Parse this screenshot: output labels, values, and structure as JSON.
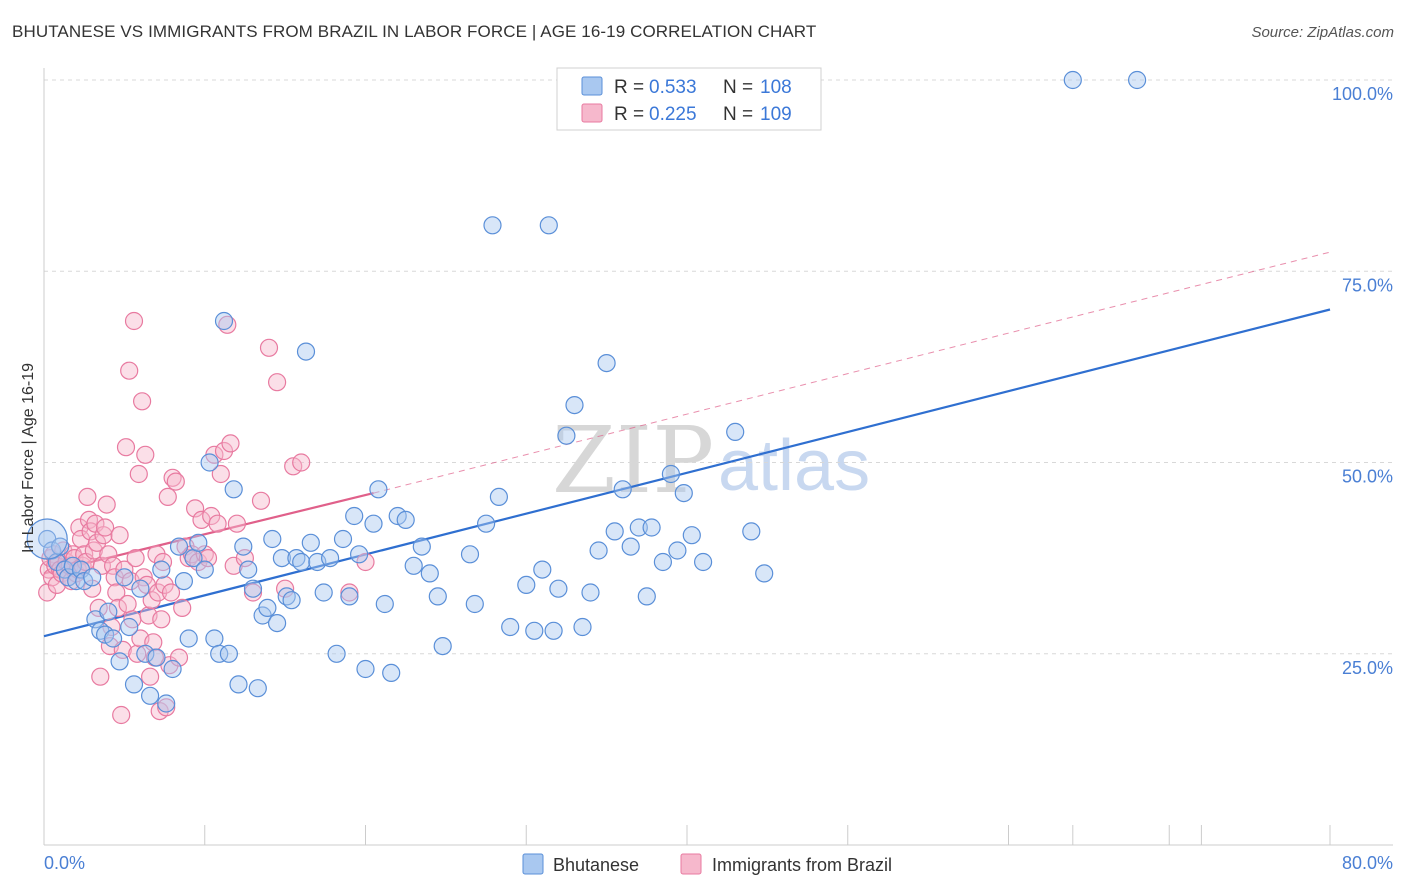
{
  "header": {
    "title": "BHUTANESE VS IMMIGRANTS FROM BRAZIL IN LABOR FORCE | AGE 16-19 CORRELATION CHART",
    "source": "Source: ZipAtlas.com"
  },
  "watermark": {
    "zip": "ZIP",
    "atlas": "atlas"
  },
  "colors": {
    "blue_fill": "#a9c8f0",
    "blue_stroke": "#5a8fd8",
    "blue_line": "#2f6fd0",
    "pink_fill": "#f6b8cc",
    "pink_stroke": "#e87aa0",
    "pink_line": "#e0608a",
    "axis_text": "#4a7fd4",
    "grid": "#d8d8d8"
  },
  "legend": {
    "rows": [
      {
        "r_label": "R = ",
        "r_value": "0.533",
        "n_label": "N = ",
        "n_value": "108"
      },
      {
        "r_label": "R = ",
        "r_value": "0.225",
        "n_label": "N = ",
        "n_value": "109"
      }
    ]
  },
  "bottom_legend": [
    "Bhutanese",
    "Immigrants from Brazil"
  ],
  "chart_data": {
    "type": "scatter",
    "title": "BHUTANESE VS IMMIGRANTS FROM BRAZIL IN LABOR FORCE | AGE 16-19 CORRELATION CHART",
    "xlabel": "",
    "ylabel": "In Labor Force | Age 16-19",
    "xlim": [
      0,
      80
    ],
    "ylim": [
      0,
      105
    ],
    "x_tick_labels": [
      "0.0%",
      "80.0%"
    ],
    "y_ticks": [
      25,
      50,
      75,
      100
    ],
    "y_tick_labels": [
      "25.0%",
      "50.0%",
      "75.0%",
      "100.0%"
    ],
    "grid": true,
    "series": [
      {
        "name": "Bhutanese",
        "r": 0.533,
        "n": 108,
        "trend": {
          "x": [
            0,
            80
          ],
          "y": [
            27.3,
            70.0
          ],
          "style": "solid"
        },
        "points": [
          [
            0.2,
            40.0
          ],
          [
            0.5,
            38.5
          ],
          [
            0.8,
            37.0
          ],
          [
            1.0,
            39.0
          ],
          [
            1.3,
            36.0
          ],
          [
            1.5,
            35.0
          ],
          [
            1.8,
            36.5
          ],
          [
            2.0,
            34.5
          ],
          [
            2.3,
            36.0
          ],
          [
            2.5,
            34.5
          ],
          [
            3.0,
            35.0
          ],
          [
            3.2,
            29.5
          ],
          [
            3.5,
            28.0
          ],
          [
            3.8,
            27.5
          ],
          [
            4.0,
            30.5
          ],
          [
            4.3,
            27.0
          ],
          [
            4.7,
            24.0
          ],
          [
            5.0,
            35.0
          ],
          [
            5.3,
            28.5
          ],
          [
            5.6,
            21.0
          ],
          [
            6.0,
            33.5
          ],
          [
            6.3,
            25.0
          ],
          [
            6.6,
            19.5
          ],
          [
            7.0,
            24.5
          ],
          [
            7.3,
            36.0
          ],
          [
            7.6,
            18.5
          ],
          [
            8.0,
            23.0
          ],
          [
            8.4,
            39.0
          ],
          [
            8.7,
            34.5
          ],
          [
            9.0,
            27.0
          ],
          [
            9.3,
            37.5
          ],
          [
            9.6,
            39.5
          ],
          [
            10.0,
            36.0
          ],
          [
            10.3,
            50.0
          ],
          [
            10.6,
            27.0
          ],
          [
            10.9,
            25.0
          ],
          [
            11.2,
            68.5
          ],
          [
            11.5,
            25.0
          ],
          [
            11.8,
            46.5
          ],
          [
            12.1,
            21.0
          ],
          [
            12.4,
            39.0
          ],
          [
            12.7,
            36.0
          ],
          [
            13.0,
            33.5
          ],
          [
            13.3,
            20.5
          ],
          [
            13.6,
            30.0
          ],
          [
            13.9,
            31.0
          ],
          [
            14.2,
            40.0
          ],
          [
            14.5,
            29.0
          ],
          [
            14.8,
            37.5
          ],
          [
            15.1,
            32.5
          ],
          [
            15.4,
            32.0
          ],
          [
            15.7,
            37.5
          ],
          [
            16.0,
            37.0
          ],
          [
            16.3,
            64.5
          ],
          [
            16.6,
            39.5
          ],
          [
            17.0,
            37.0
          ],
          [
            17.4,
            33.0
          ],
          [
            17.8,
            37.5
          ],
          [
            18.2,
            25.0
          ],
          [
            18.6,
            40.0
          ],
          [
            19.0,
            32.5
          ],
          [
            19.3,
            43.0
          ],
          [
            19.6,
            38.0
          ],
          [
            20.0,
            23.0
          ],
          [
            20.5,
            42.0
          ],
          [
            20.8,
            46.5
          ],
          [
            21.2,
            31.5
          ],
          [
            21.6,
            22.5
          ],
          [
            22.0,
            43.0
          ],
          [
            22.5,
            42.5
          ],
          [
            23.0,
            36.5
          ],
          [
            23.5,
            39.0
          ],
          [
            24.0,
            35.5
          ],
          [
            24.5,
            32.5
          ],
          [
            24.8,
            26.0
          ],
          [
            26.5,
            38.0
          ],
          [
            26.8,
            31.5
          ],
          [
            27.5,
            42.0
          ],
          [
            27.9,
            81.0
          ],
          [
            28.3,
            45.5
          ],
          [
            29.0,
            28.5
          ],
          [
            30.0,
            34.0
          ],
          [
            30.5,
            28.0
          ],
          [
            31.0,
            36.0
          ],
          [
            31.4,
            81.0
          ],
          [
            31.7,
            28.0
          ],
          [
            32.0,
            33.5
          ],
          [
            32.5,
            53.5
          ],
          [
            33.0,
            57.5
          ],
          [
            33.5,
            28.5
          ],
          [
            34.0,
            33.0
          ],
          [
            34.5,
            38.5
          ],
          [
            35.0,
            63.0
          ],
          [
            35.5,
            41.0
          ],
          [
            36.0,
            46.5
          ],
          [
            36.5,
            39.0
          ],
          [
            37.0,
            41.5
          ],
          [
            37.5,
            32.5
          ],
          [
            37.8,
            41.5
          ],
          [
            38.5,
            37.0
          ],
          [
            39.0,
            48.5
          ],
          [
            39.4,
            38.5
          ],
          [
            39.8,
            46.0
          ],
          [
            40.3,
            40.5
          ],
          [
            41.0,
            37.0
          ],
          [
            43.0,
            54.0
          ],
          [
            44.0,
            41.0
          ],
          [
            44.8,
            35.5
          ],
          [
            64.0,
            100.0
          ],
          [
            68.0,
            100.0
          ]
        ]
      },
      {
        "name": "Immigrants from Brazil",
        "r": 0.225,
        "n": 109,
        "trend": {
          "x": [
            0,
            20.5
          ],
          "y": [
            35.5,
            46.0
          ],
          "style": "solid",
          "extended": {
            "x": [
              20.5,
              80
            ],
            "y": [
              46.0,
              77.5
            ],
            "style": "dashed"
          }
        },
        "points": [
          [
            0.2,
            33.0
          ],
          [
            0.3,
            36.0
          ],
          [
            0.4,
            37.5
          ],
          [
            0.5,
            35.0
          ],
          [
            0.6,
            38.0
          ],
          [
            0.7,
            36.5
          ],
          [
            0.8,
            34.0
          ],
          [
            0.9,
            37.0
          ],
          [
            1.0,
            36.0
          ],
          [
            1.1,
            35.5
          ],
          [
            1.2,
            38.5
          ],
          [
            1.3,
            36.0
          ],
          [
            1.4,
            37.0
          ],
          [
            1.5,
            35.0
          ],
          [
            1.6,
            36.5
          ],
          [
            1.7,
            34.5
          ],
          [
            1.8,
            38.0
          ],
          [
            1.9,
            37.5
          ],
          [
            2.0,
            35.5
          ],
          [
            2.1,
            36.0
          ],
          [
            2.2,
            41.5
          ],
          [
            2.3,
            40.0
          ],
          [
            2.4,
            36.5
          ],
          [
            2.5,
            38.0
          ],
          [
            2.6,
            37.0
          ],
          [
            2.7,
            45.5
          ],
          [
            2.8,
            42.5
          ],
          [
            2.9,
            41.0
          ],
          [
            3.0,
            33.5
          ],
          [
            3.1,
            38.5
          ],
          [
            3.2,
            42.0
          ],
          [
            3.3,
            39.5
          ],
          [
            3.4,
            31.0
          ],
          [
            3.5,
            22.0
          ],
          [
            3.6,
            36.5
          ],
          [
            3.7,
            40.5
          ],
          [
            3.8,
            41.5
          ],
          [
            3.9,
            44.5
          ],
          [
            4.0,
            38.0
          ],
          [
            4.1,
            26.0
          ],
          [
            4.2,
            28.5
          ],
          [
            4.3,
            36.5
          ],
          [
            4.4,
            35.0
          ],
          [
            4.5,
            33.0
          ],
          [
            4.6,
            31.0
          ],
          [
            4.7,
            40.5
          ],
          [
            4.8,
            17.0
          ],
          [
            4.9,
            25.5
          ],
          [
            5.0,
            36.0
          ],
          [
            5.1,
            52.0
          ],
          [
            5.2,
            31.5
          ],
          [
            5.3,
            62.0
          ],
          [
            5.4,
            34.5
          ],
          [
            5.5,
            29.5
          ],
          [
            5.6,
            68.5
          ],
          [
            5.7,
            37.5
          ],
          [
            5.8,
            25.0
          ],
          [
            5.9,
            48.5
          ],
          [
            6.0,
            27.0
          ],
          [
            6.1,
            58.0
          ],
          [
            6.2,
            35.0
          ],
          [
            6.3,
            51.0
          ],
          [
            6.4,
            34.0
          ],
          [
            6.5,
            30.0
          ],
          [
            6.6,
            22.0
          ],
          [
            6.7,
            32.0
          ],
          [
            6.8,
            26.5
          ],
          [
            6.9,
            24.5
          ],
          [
            7.0,
            38.0
          ],
          [
            7.1,
            33.0
          ],
          [
            7.2,
            17.5
          ],
          [
            7.3,
            29.5
          ],
          [
            7.4,
            37.0
          ],
          [
            7.5,
            34.0
          ],
          [
            7.6,
            18.0
          ],
          [
            7.7,
            45.5
          ],
          [
            7.8,
            23.5
          ],
          [
            7.9,
            33.0
          ],
          [
            8.0,
            48.0
          ],
          [
            8.2,
            47.5
          ],
          [
            8.4,
            24.5
          ],
          [
            8.6,
            31.0
          ],
          [
            8.8,
            39.0
          ],
          [
            9.0,
            37.5
          ],
          [
            9.2,
            38.0
          ],
          [
            9.4,
            44.0
          ],
          [
            9.6,
            37.0
          ],
          [
            9.8,
            42.5
          ],
          [
            10.0,
            38.0
          ],
          [
            10.2,
            37.5
          ],
          [
            10.4,
            43.0
          ],
          [
            10.6,
            51.0
          ],
          [
            10.8,
            42.0
          ],
          [
            11.0,
            48.5
          ],
          [
            11.2,
            51.5
          ],
          [
            11.4,
            68.0
          ],
          [
            11.6,
            52.5
          ],
          [
            11.8,
            36.5
          ],
          [
            12.0,
            42.0
          ],
          [
            12.5,
            37.5
          ],
          [
            13.0,
            33.0
          ],
          [
            13.5,
            45.0
          ],
          [
            14.0,
            65.0
          ],
          [
            14.5,
            60.5
          ],
          [
            15.0,
            33.5
          ],
          [
            15.5,
            49.5
          ],
          [
            16.0,
            50.0
          ],
          [
            19.0,
            33.0
          ],
          [
            20.0,
            37.0
          ]
        ]
      }
    ]
  }
}
